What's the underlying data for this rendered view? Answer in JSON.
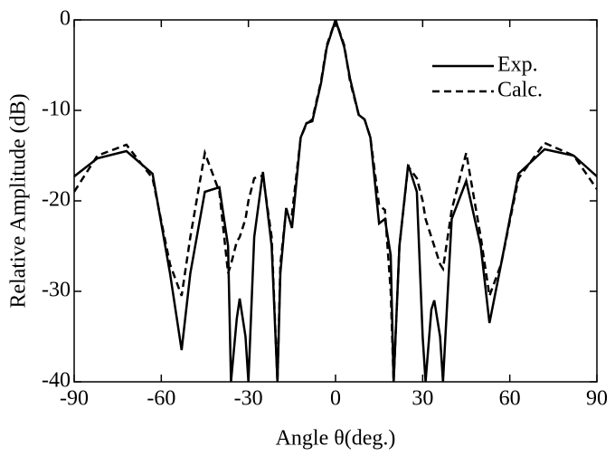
{
  "chart_data": {
    "type": "line",
    "xlabel": "Angle θ(deg.)",
    "ylabel": "Relative Amplitude (dB)",
    "x": [
      -90,
      -82,
      -72,
      -63,
      -57,
      -53,
      -50,
      -45,
      -40,
      -37,
      -36,
      -34,
      -33,
      -31,
      -30,
      -28,
      -25,
      -22,
      -20,
      -19,
      -17,
      -15,
      -12,
      -10,
      -8,
      -5,
      -3,
      0,
      3,
      5,
      8,
      10,
      12,
      15,
      17,
      19,
      20,
      22,
      25,
      28,
      30,
      31,
      33,
      34,
      36,
      37,
      40,
      45,
      50,
      53,
      57,
      63,
      72,
      82,
      90
    ],
    "series": [
      {
        "name": "Exp.",
        "color": "#000000",
        "dash": "solid",
        "values": [
          -17.3,
          -15.3,
          -14.5,
          -17,
          -28,
          -36.5,
          -28,
          -19,
          -18.5,
          -25,
          -40,
          -33,
          -30.8,
          -35,
          -40,
          -24,
          -16.8,
          -25,
          -40,
          -28,
          -20.8,
          -23,
          -13,
          -11.4,
          -11.2,
          -7,
          -3,
          0,
          -3,
          -6.5,
          -10.5,
          -11,
          -13,
          -22.5,
          -22,
          -26,
          -40,
          -25,
          -16,
          -19,
          -35,
          -40,
          -32,
          -31,
          -35,
          -40,
          -22,
          -17.8,
          -25,
          -33.5,
          -27,
          -17,
          -14.3,
          -15,
          -17.3
        ]
      },
      {
        "name": "Calc.",
        "color": "#000000",
        "dash": "dashed",
        "values": [
          -19,
          -15,
          -13.8,
          -17.5,
          -27,
          -30.5,
          -24,
          -14.7,
          -19,
          -28,
          -27,
          -24.5,
          -24,
          -22,
          -20,
          -17.5,
          -17.2,
          -24,
          -40,
          -27,
          -21,
          -21.5,
          -13,
          -11.5,
          -11,
          -6.8,
          -2.8,
          0,
          -2.8,
          -6.8,
          -10.5,
          -11,
          -13,
          -20.5,
          -21,
          -30,
          -40,
          -25,
          -16.2,
          -17.5,
          -20,
          -22,
          -24,
          -25,
          -27,
          -27.5,
          -21,
          -14.7,
          -24,
          -30.5,
          -27,
          -17.5,
          -13.6,
          -15,
          -18.7
        ]
      }
    ],
    "xlim": [
      -90,
      90
    ],
    "xticks": [
      -90,
      -60,
      -30,
      0,
      30,
      60,
      90
    ],
    "ylim": [
      -40,
      0
    ],
    "yticks": [
      -40,
      -30,
      -20,
      -10,
      0
    ],
    "legend": "upper right"
  }
}
